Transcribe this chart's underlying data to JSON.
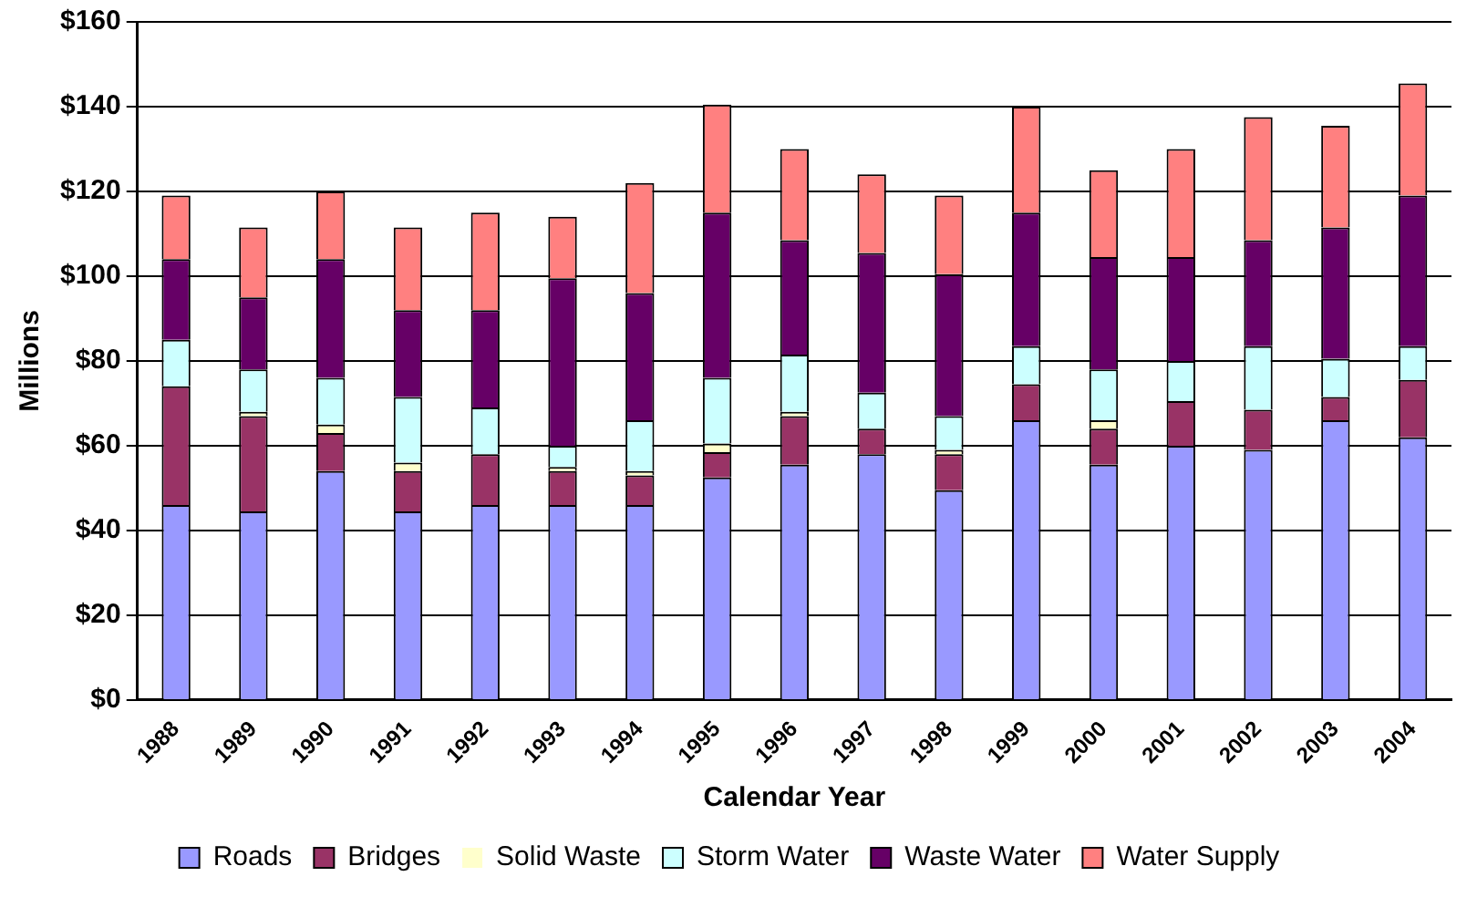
{
  "chart_data": {
    "type": "bar",
    "stacked": true,
    "xlabel": "Calendar Year",
    "ylabel": "Millions",
    "categories": [
      "1988",
      "1989",
      "1990",
      "1991",
      "1992",
      "1993",
      "1994",
      "1995",
      "1996",
      "1997",
      "1998",
      "1999",
      "2000",
      "2001",
      "2002",
      "2003",
      "2004"
    ],
    "series": [
      {
        "name": "Roads",
        "color": "#9999ff",
        "values": [
          46,
          44.5,
          54,
          44.5,
          46,
          46,
          46,
          52.5,
          55.5,
          58,
          49.5,
          66,
          55.5,
          60,
          59,
          66,
          62
        ]
      },
      {
        "name": "Bridges",
        "color": "#993366",
        "values": [
          28,
          22.5,
          9,
          9.5,
          12,
          8,
          7,
          6,
          11.5,
          6,
          8.5,
          8.5,
          8.5,
          10.5,
          9.5,
          5.5,
          13.5
        ]
      },
      {
        "name": "Solid Waste",
        "color": "#ffffcc",
        "values": [
          0,
          1,
          2,
          2,
          0,
          1,
          1,
          2,
          1,
          0,
          1,
          0,
          2,
          0,
          0,
          0,
          0
        ]
      },
      {
        "name": "Storm Water",
        "color": "#ccffff",
        "values": [
          11,
          10,
          11,
          15.5,
          11,
          5,
          12,
          15.5,
          13.5,
          8.5,
          8,
          9,
          12,
          9.5,
          15,
          9,
          8
        ]
      },
      {
        "name": "Waste Water",
        "color": "#660066",
        "values": [
          19,
          17,
          28,
          20.5,
          23,
          39.5,
          30,
          39,
          27,
          33,
          33.5,
          31.5,
          26.5,
          24.5,
          25,
          31,
          35.5
        ]
      },
      {
        "name": "Water Supply",
        "color": "#ff8080",
        "values": [
          15,
          16.5,
          16,
          19.5,
          23,
          14.5,
          26,
          25.5,
          21.5,
          18.5,
          18.5,
          25,
          20.5,
          25.5,
          29,
          24,
          26.5
        ]
      }
    ],
    "ylim": [
      0,
      160
    ],
    "yticks": [
      {
        "value": 0,
        "label": "$0"
      },
      {
        "value": 20,
        "label": "$20"
      },
      {
        "value": 40,
        "label": "$40"
      },
      {
        "value": 60,
        "label": "$60"
      },
      {
        "value": 80,
        "label": "$80"
      },
      {
        "value": 100,
        "label": "$100"
      },
      {
        "value": 120,
        "label": "$120"
      },
      {
        "value": 140,
        "label": "$140"
      },
      {
        "value": 160,
        "label": "$160"
      }
    ],
    "grid": "y",
    "legend": "bottom"
  }
}
